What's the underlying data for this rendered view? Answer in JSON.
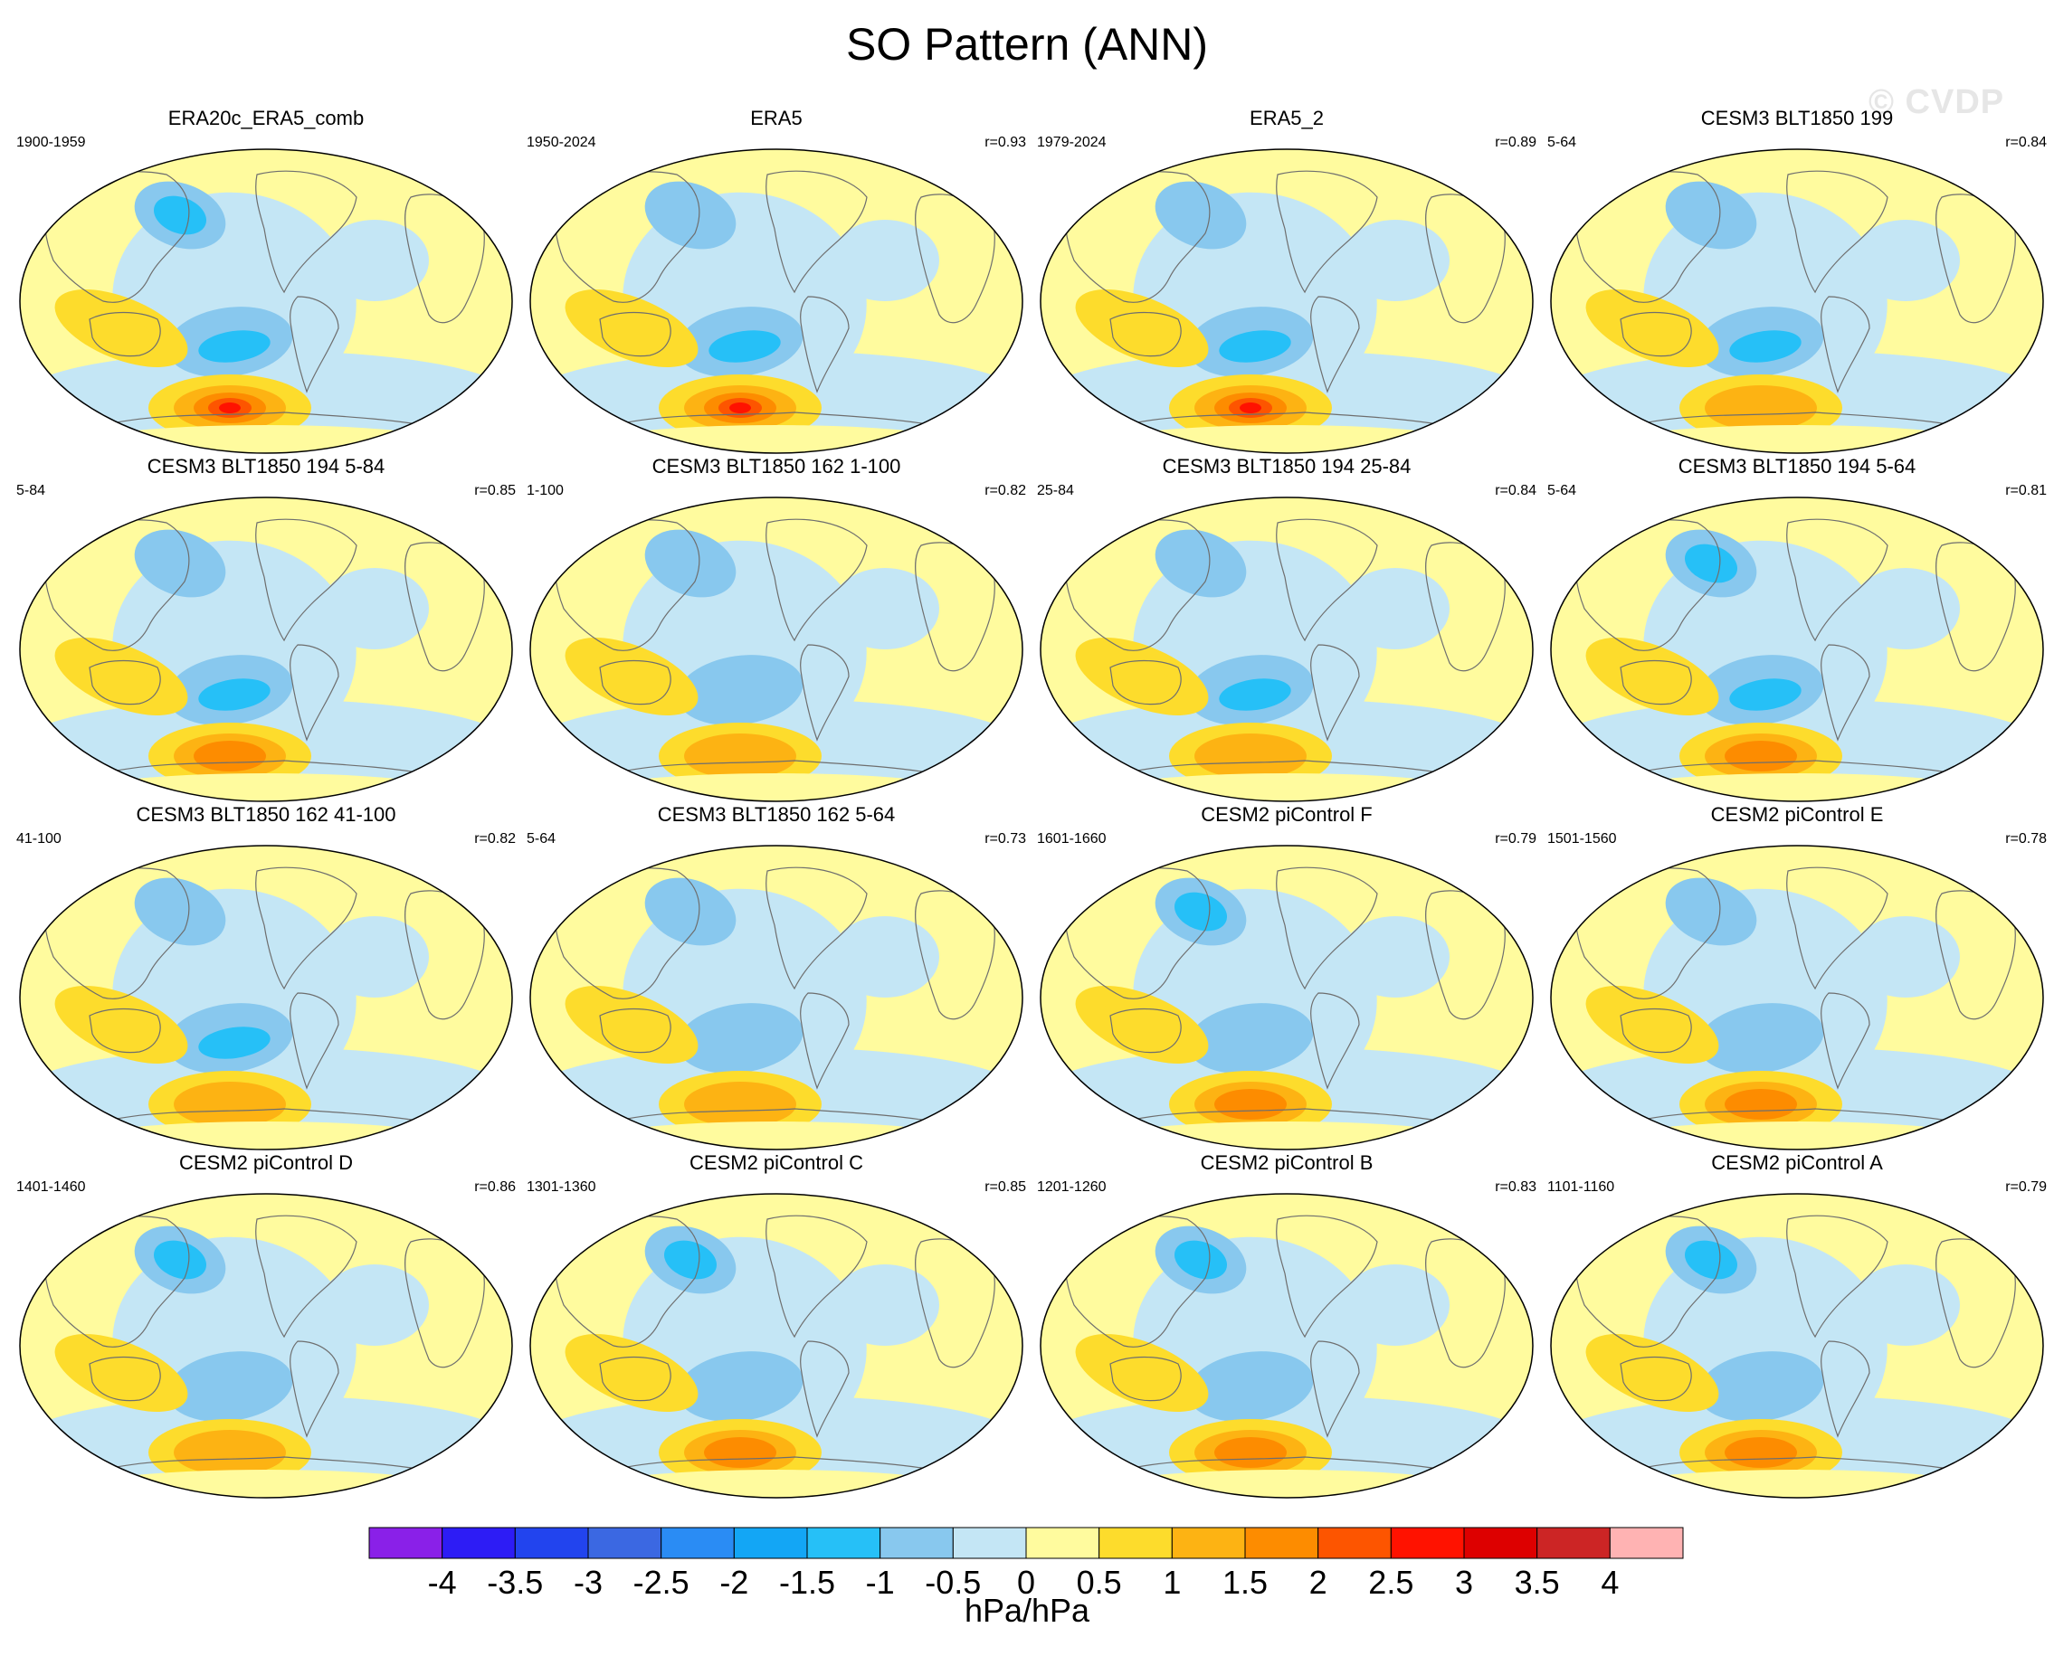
{
  "title": "SO Pattern (ANN)",
  "watermark": "© CVDP",
  "colorbar": {
    "units": "hPa/hPa",
    "colors": [
      "#8a20e8",
      "#2d1cf5",
      "#2244ee",
      "#3b68e2",
      "#2a8cf4",
      "#13a6f5",
      "#26c0f7",
      "#88c8ee",
      "#c4e6f5",
      "#fffb9e",
      "#fddc2c",
      "#fdb313",
      "#fd8c00",
      "#fd5500",
      "#ff1200",
      "#dd0000",
      "#cc2525",
      "#ffb3b3"
    ],
    "ticks": [
      "-4",
      "-3.5",
      "-3",
      "-2.5",
      "-2",
      "-1.5",
      "-1",
      "-0.5",
      "0",
      "0.5",
      "1",
      "1.5",
      "2",
      "2.5",
      "3",
      "3.5",
      "4"
    ]
  },
  "chart_data": {
    "type": "map-panel-grid",
    "title": "SO Pattern (ANN)",
    "units": "hPa/hPa",
    "contour_levels": [
      -4,
      -3.5,
      -3,
      -2.5,
      -2,
      -1.5,
      -1,
      -0.5,
      0,
      0.5,
      1,
      1.5,
      2,
      2.5,
      3,
      3.5,
      4
    ],
    "panels": [
      {
        "name": "ERA20c_ERA5_comb",
        "years": "1900-1959",
        "r": "",
        "south_pacific_min": -1.5,
        "amundsen_max": 3.0,
        "north_pacific_min": -1.5
      },
      {
        "name": "ERA5",
        "years": "1950-2024",
        "r": "r=0.93",
        "south_pacific_min": -1.5,
        "amundsen_max": 3.0,
        "north_pacific_min": -1.0
      },
      {
        "name": "ERA5_2",
        "years": "1979-2024",
        "r": "r=0.89",
        "south_pacific_min": -1.5,
        "amundsen_max": 3.0,
        "north_pacific_min": -1.0
      },
      {
        "name": "CESM3 BLT1850 199",
        "years": "5-64",
        "r": "r=0.84",
        "south_pacific_min": -1.5,
        "amundsen_max": 1.5,
        "north_pacific_min": -1.0
      },
      {
        "name": "CESM3 BLT1850 194 5-84",
        "years": "5-84",
        "r": "r=0.85",
        "south_pacific_min": -1.5,
        "amundsen_max": 2.0,
        "north_pacific_min": -1.0
      },
      {
        "name": "CESM3 BLT1850 162 1-100",
        "years": "1-100",
        "r": "r=0.82",
        "south_pacific_min": -1.0,
        "amundsen_max": 1.5,
        "north_pacific_min": -1.0
      },
      {
        "name": "CESM3 BLT1850 194 25-84",
        "years": "25-84",
        "r": "r=0.84",
        "south_pacific_min": -1.5,
        "amundsen_max": 1.5,
        "north_pacific_min": -1.0
      },
      {
        "name": "CESM3 BLT1850 194 5-64",
        "years": "5-64",
        "r": "r=0.81",
        "south_pacific_min": -1.5,
        "amundsen_max": 2.0,
        "north_pacific_min": -1.5
      },
      {
        "name": "CESM3 BLT1850 162 41-100",
        "years": "41-100",
        "r": "r=0.82",
        "south_pacific_min": -1.5,
        "amundsen_max": 1.5,
        "north_pacific_min": -1.0
      },
      {
        "name": "CESM3 BLT1850 162 5-64",
        "years": "5-64",
        "r": "r=0.73",
        "south_pacific_min": -1.0,
        "amundsen_max": 1.5,
        "north_pacific_min": -1.0
      },
      {
        "name": "CESM2 piControl F",
        "years": "1601-1660",
        "r": "r=0.79",
        "south_pacific_min": -1.0,
        "amundsen_max": 2.0,
        "north_pacific_min": -1.5
      },
      {
        "name": "CESM2 piControl E",
        "years": "1501-1560",
        "r": "r=0.78",
        "south_pacific_min": -1.0,
        "amundsen_max": 2.0,
        "north_pacific_min": -1.0
      },
      {
        "name": "CESM2 piControl D",
        "years": "1401-1460",
        "r": "r=0.86",
        "south_pacific_min": -1.0,
        "amundsen_max": 1.5,
        "north_pacific_min": -1.5
      },
      {
        "name": "CESM2 piControl C",
        "years": "1301-1360",
        "r": "r=0.85",
        "south_pacific_min": -1.0,
        "amundsen_max": 2.0,
        "north_pacific_min": -1.5
      },
      {
        "name": "CESM2 piControl B",
        "years": "1201-1260",
        "r": "r=0.83",
        "south_pacific_min": -1.0,
        "amundsen_max": 2.0,
        "north_pacific_min": -1.5
      },
      {
        "name": "CESM2 piControl A",
        "years": "1101-1160",
        "r": "r=0.79",
        "south_pacific_min": -1.0,
        "amundsen_max": 2.0,
        "north_pacific_min": -1.5
      }
    ]
  }
}
